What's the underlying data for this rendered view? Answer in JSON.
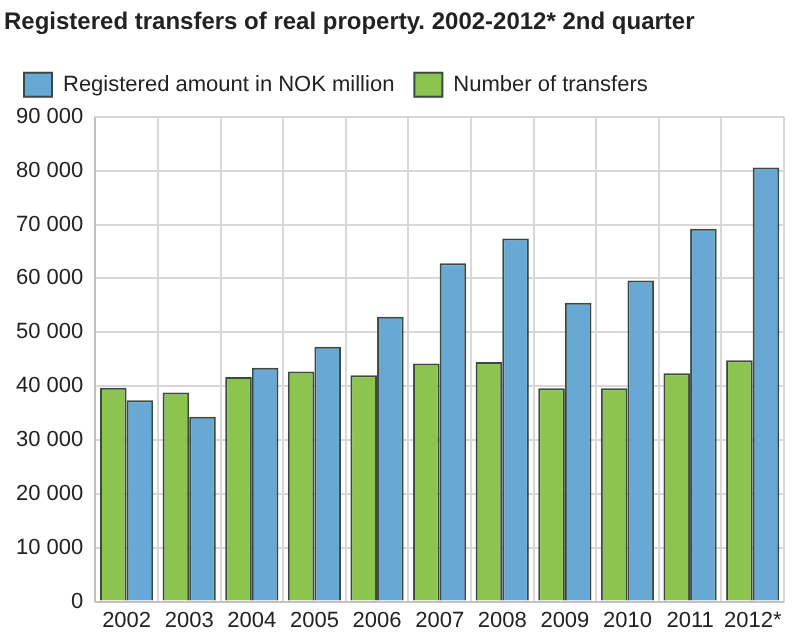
{
  "chart_data": {
    "type": "bar",
    "title": "Registered transfers of real property. 2002-2012* 2nd quarter",
    "categories": [
      "2002",
      "2003",
      "2004",
      "2005",
      "2006",
      "2007",
      "2008",
      "2009",
      "2010",
      "2011",
      "2012*"
    ],
    "series": [
      {
        "name": "Number of transfers",
        "color": "#8dc450",
        "values": [
          39700,
          38800,
          41700,
          42700,
          42000,
          44200,
          44500,
          39600,
          39600,
          42400,
          44800
        ]
      },
      {
        "name": "Registered amount in NOK million",
        "color": "#67a8d4",
        "values": [
          37400,
          34300,
          43400,
          47300,
          52900,
          62800,
          67400,
          55500,
          59600,
          69200,
          80600
        ]
      }
    ],
    "ylim": [
      0,
      90000
    ],
    "yticks": [
      {
        "value": 0,
        "label": "0"
      },
      {
        "value": 10000,
        "label": "10 000"
      },
      {
        "value": 20000,
        "label": "20 000"
      },
      {
        "value": 30000,
        "label": "30 000"
      },
      {
        "value": 40000,
        "label": "40 000"
      },
      {
        "value": 50000,
        "label": "50 000"
      },
      {
        "value": 60000,
        "label": "60 000"
      },
      {
        "value": 70000,
        "label": "70 000"
      },
      {
        "value": 80000,
        "label": "80 000"
      },
      {
        "value": 90000,
        "label": "90 000"
      }
    ],
    "grid": true,
    "legend": "top left"
  }
}
